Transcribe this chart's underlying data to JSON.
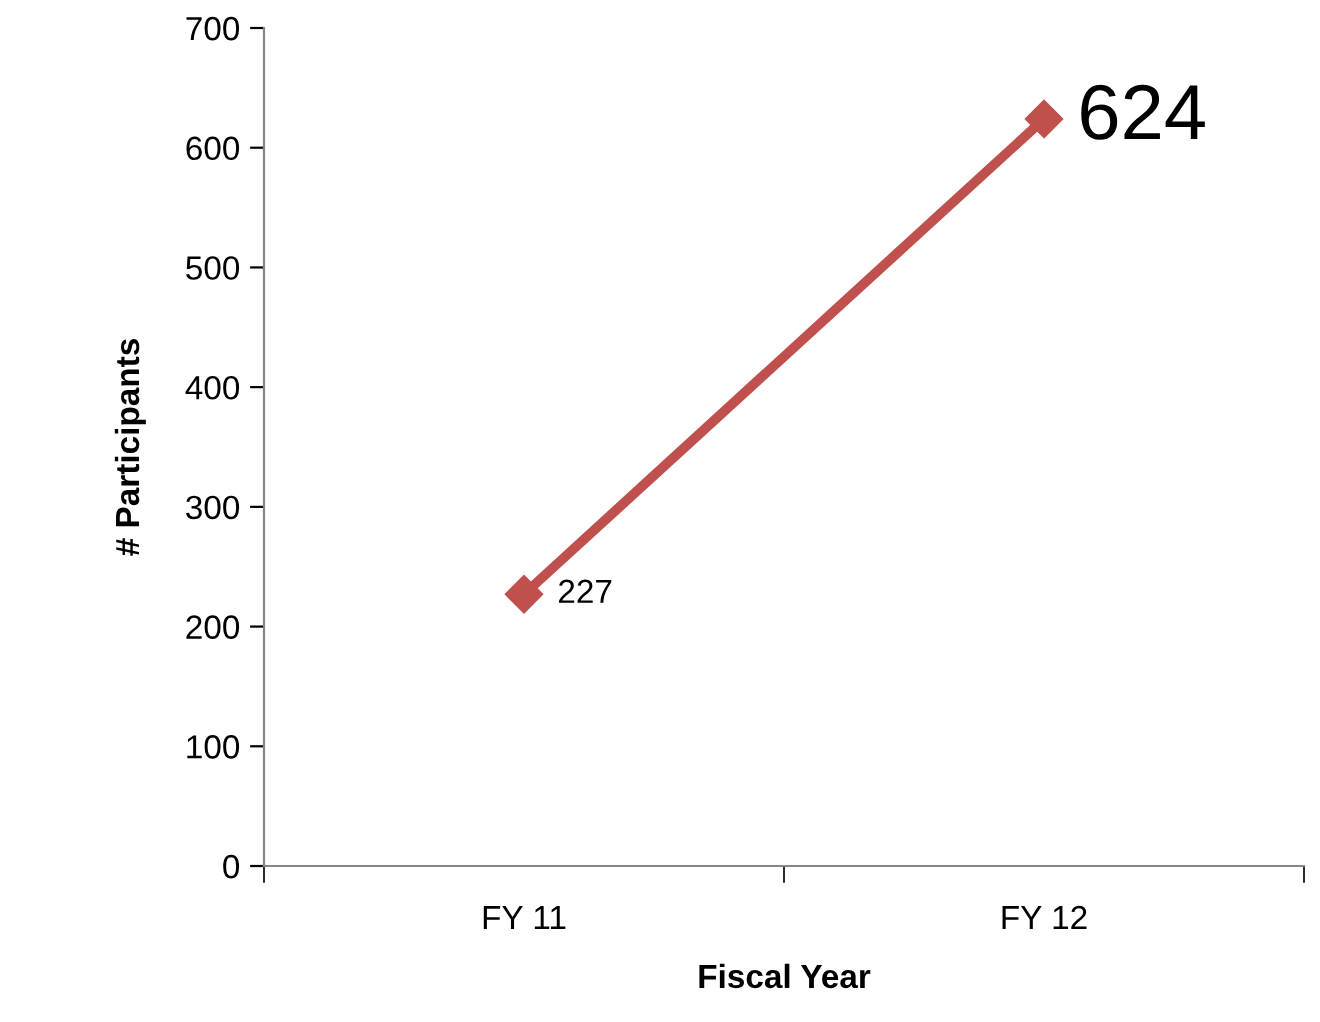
{
  "chart_data": {
    "type": "line",
    "xlabel": "Fiscal Year",
    "ylabel": "# Participants",
    "categories": [
      "FY 11",
      "FY 12"
    ],
    "series": [
      {
        "color": "#c0504d",
        "values": [
          227,
          624
        ]
      }
    ],
    "ylim": [
      0,
      700
    ],
    "yticks": [
      0,
      100,
      200,
      300,
      400,
      500,
      600,
      700
    ],
    "marker": "diamond",
    "line_style": "solid",
    "data_labels": true,
    "grid": false,
    "legend": false
  }
}
